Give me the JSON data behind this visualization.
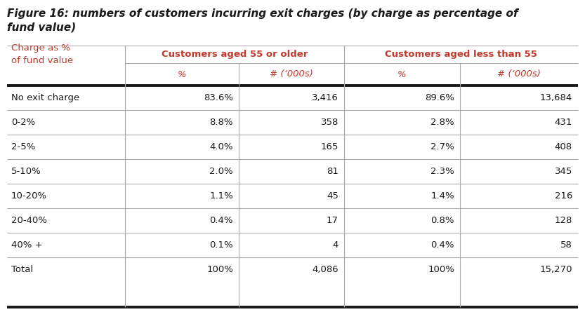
{
  "title_line1": "Figure 16: numbers of customers incurring exit charges (by charge as percentage of",
  "title_line2": "fund value)",
  "col0_header_line1": "Charge as %",
  "col0_header_line2": "of fund value",
  "group1_header": "Customers aged 55 or older",
  "group2_header": "Customers aged less than 55",
  "sub_col1": "%",
  "sub_col2": "# (‘000s)",
  "sub_col3": "%",
  "sub_col4": "# (‘000s)",
  "row_labels": [
    "No exit charge",
    "0-2%",
    "2-5%",
    "5-10%",
    "10-20%",
    "20-40%",
    "40% +",
    "Total"
  ],
  "col1_pct": [
    "83.6%",
    "8.8%",
    "4.0%",
    "2.0%",
    "1.1%",
    "0.4%",
    "0.1%",
    "100%"
  ],
  "col2_num": [
    "3,416",
    "358",
    "165",
    "81",
    "45",
    "17",
    "4",
    "4,086"
  ],
  "col3_pct": [
    "89.6%",
    "2.8%",
    "2.7%",
    "2.3%",
    "1.4%",
    "0.8%",
    "0.4%",
    "100%"
  ],
  "col4_num": [
    "13,684",
    "431",
    "408",
    "345",
    "216",
    "128",
    "58",
    "15,270"
  ],
  "red_color": "#c0392b",
  "black_color": "#1a1a1a",
  "bg_color": "#ffffff",
  "title_fontsize": 11.0,
  "header_fontsize": 9.5,
  "cell_fontsize": 9.5,
  "fig_width": 8.33,
  "fig_height": 4.45,
  "dpi": 100
}
